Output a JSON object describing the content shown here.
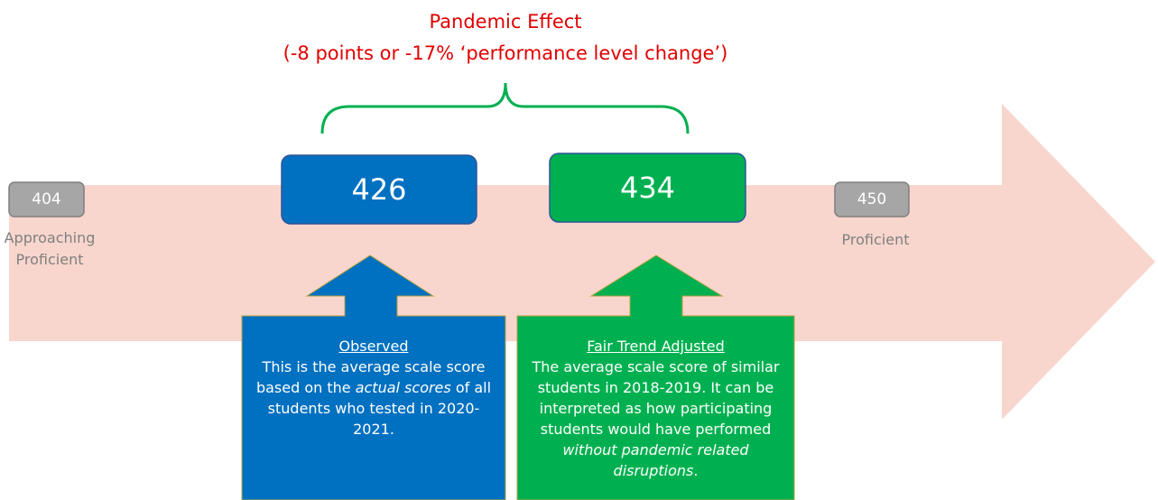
{
  "title": "Pandemic Effect",
  "subtitle": "(-8 points or -17% ‘performance level change’)",
  "low": {
    "score": "404",
    "label": [
      "Approaching",
      "Proficient"
    ]
  },
  "high": {
    "score": "450",
    "label": "Proficient"
  },
  "observed": {
    "score": "426",
    "heading": "Observed",
    "description": [
      "This is the average scale score based on the ",
      "actual scores",
      " of all students who tested in 2020-2021."
    ]
  },
  "adjusted": {
    "score": "434",
    "heading": "Fair Trend Adjusted",
    "description": [
      "The average scale score of similar students in 2018-2019. It can be interpreted as how participating students would have performed ",
      "without pandemic related disruptions",
      "."
    ]
  }
}
